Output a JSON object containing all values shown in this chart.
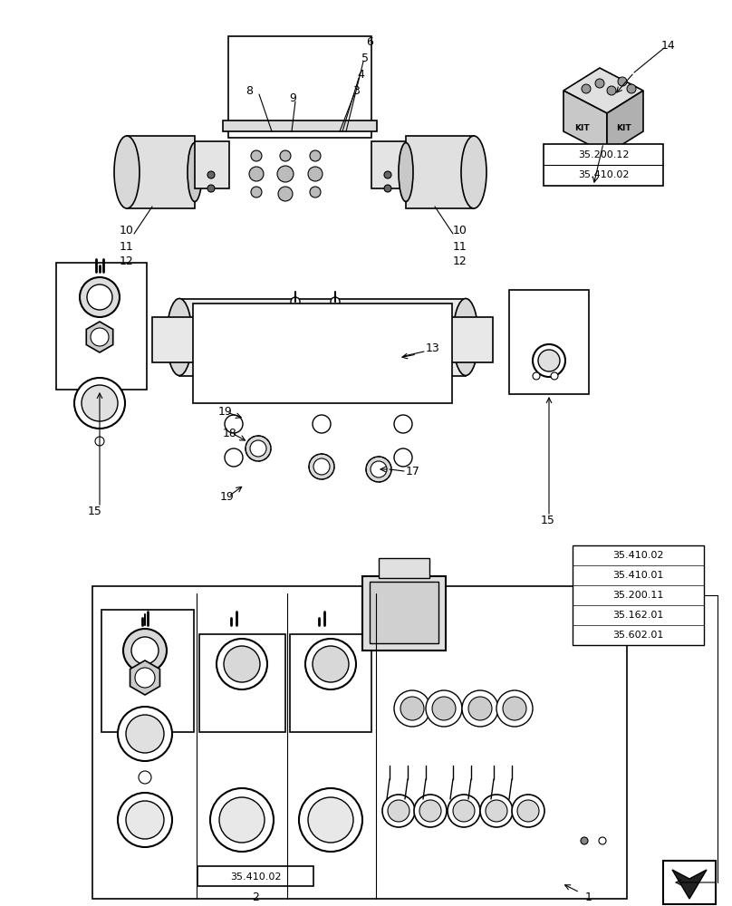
{
  "bg_color": "#ffffff",
  "black": "#000000",
  "gray1": "#e8e8e8",
  "gray2": "#d0d0d0",
  "gray3": "#cccccc",
  "gray4": "#e0e0e0",
  "gray5": "#888888",
  "font_size": 9,
  "lw": 1.2
}
